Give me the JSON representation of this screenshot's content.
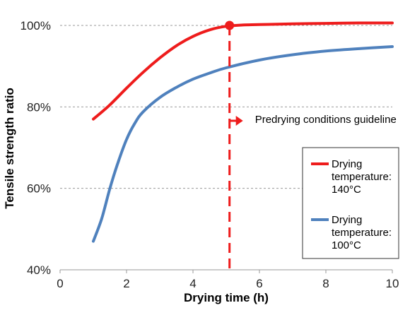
{
  "chart_data": {
    "type": "line",
    "title": "",
    "xlabel": "Drying time (h)",
    "ylabel": "Tensile strength ratio",
    "xlim": [
      0,
      10
    ],
    "ylim": [
      40,
      100
    ],
    "x_ticks": [
      "0",
      "2",
      "4",
      "6",
      "8",
      "10"
    ],
    "y_ticks": [
      "40%",
      "60%",
      "80%",
      "100%"
    ],
    "grid": "horizontal dashed",
    "legend_position": "bottom-right",
    "series": [
      {
        "name": "Drying temperature: 140°C",
        "legend_lines": [
          "Drying",
          "temperature:",
          "140°C"
        ],
        "color": "#ee1c1c",
        "x": [
          1.0,
          1.5,
          2.0,
          2.5,
          3.0,
          3.5,
          4.0,
          4.5,
          5.0,
          5.5,
          6.0,
          7.0,
          8.0,
          9.0,
          10.0
        ],
        "y": [
          77.0,
          80.5,
          84.6,
          88.5,
          92.0,
          95.0,
          97.3,
          98.9,
          99.8,
          100.1,
          100.2,
          100.4,
          100.5,
          100.6,
          100.6
        ]
      },
      {
        "name": "Drying temperature: 100°C",
        "legend_lines": [
          "Drying",
          "temperature:",
          "100°C"
        ],
        "color": "#4f81bd",
        "x": [
          1.0,
          1.25,
          1.5,
          1.75,
          2.0,
          2.25,
          2.5,
          3.0,
          3.5,
          4.0,
          4.5,
          5.0,
          6.0,
          7.0,
          8.0,
          9.0,
          10.0
        ],
        "y": [
          47.0,
          52.5,
          60.0,
          66.5,
          72.0,
          76.0,
          78.8,
          82.3,
          84.8,
          86.8,
          88.3,
          89.6,
          91.5,
          92.8,
          93.7,
          94.3,
          94.8
        ]
      }
    ],
    "guideline": {
      "x": 5.1,
      "y": 100,
      "label": "Predrying conditions guideline",
      "color": "#ee1c1c"
    }
  }
}
